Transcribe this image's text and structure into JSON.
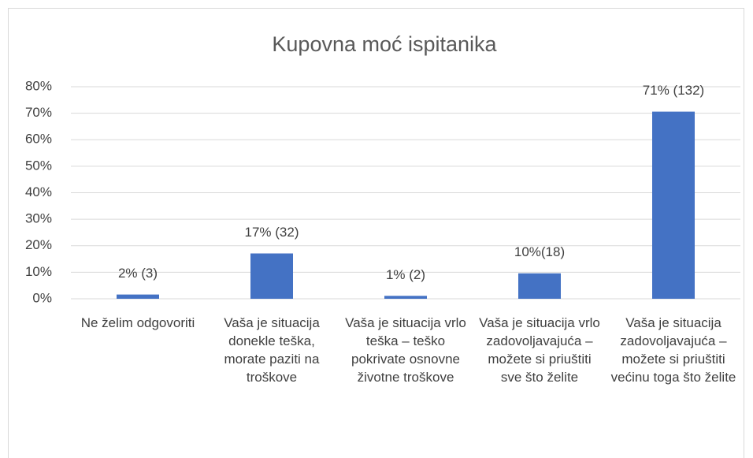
{
  "chart_data": {
    "type": "bar",
    "title": "Kupovna moć ispitanika",
    "categories": [
      "Ne želim odgovoriti",
      "Vaša je situacija donekle teška, morate paziti na troškove",
      "Vaša je situacija vrlo teška – teško pokrivate osnovne životne troškove",
      "Vaša je situacija vrlo zadovoljavajuća – možete si priuštiti sve što želite",
      "Vaša je situacija zadovoljavajuća – možete si priuštiti većinu toga što želite"
    ],
    "values": [
      1.6,
      17.1,
      1.1,
      9.6,
      70.6
    ],
    "value_labels": [
      "2% (3)",
      "17% (32)",
      "1% (2)",
      "10%(18)",
      "71% (132)"
    ],
    "color": "#4472c4",
    "ylim": [
      0,
      80
    ],
    "yticks": [
      {
        "value": 0,
        "label": "0%"
      },
      {
        "value": 10,
        "label": "10%"
      },
      {
        "value": 20,
        "label": "20%"
      },
      {
        "value": 30,
        "label": "30%"
      },
      {
        "value": 40,
        "label": "40%"
      },
      {
        "value": 50,
        "label": "50%"
      },
      {
        "value": 60,
        "label": "60%"
      },
      {
        "value": 70,
        "label": "70%"
      },
      {
        "value": 80,
        "label": "80%"
      }
    ],
    "grid": true
  }
}
